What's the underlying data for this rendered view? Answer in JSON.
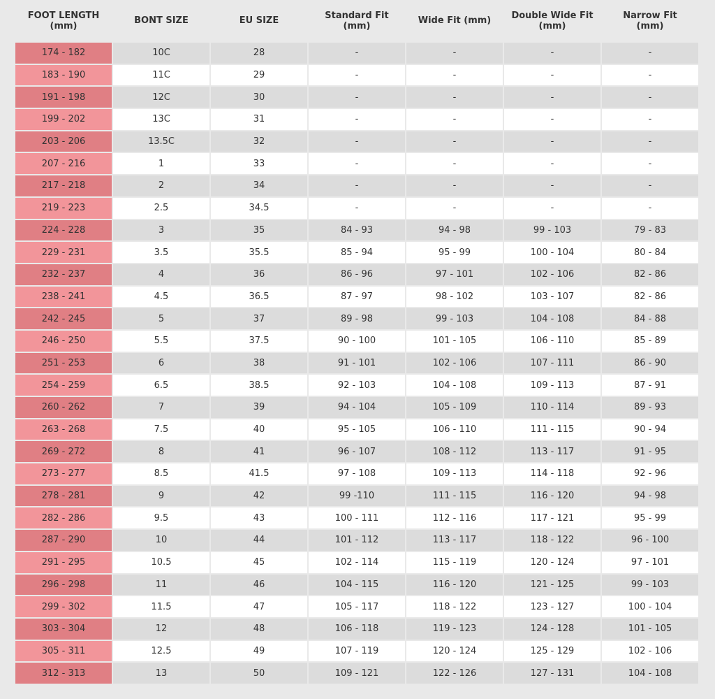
{
  "table": {
    "headers": [
      "FOOT LENGTH (mm)",
      "BONT SIZE",
      "EU SIZE",
      "Standard Fit (mm)",
      "Wide Fit (mm)",
      "Double Wide Fit (mm)",
      "Narrow Fit (mm)"
    ],
    "rows": [
      [
        "174 - 182",
        "10C",
        "28",
        "-",
        "-",
        "-",
        "-"
      ],
      [
        "183 - 190",
        "11C",
        "29",
        "-",
        "-",
        "-",
        "-"
      ],
      [
        "191 - 198",
        "12C",
        "30",
        "-",
        "-",
        "-",
        "-"
      ],
      [
        "199 - 202",
        "13C",
        "31",
        "-",
        "-",
        "-",
        "-"
      ],
      [
        "203 - 206",
        "13.5C",
        "32",
        "-",
        "-",
        "-",
        "-"
      ],
      [
        "207 - 216",
        "1",
        "33",
        "-",
        "-",
        "-",
        "-"
      ],
      [
        "217 - 218",
        "2",
        "34",
        "-",
        "-",
        "-",
        "-"
      ],
      [
        "219 - 223",
        "2.5",
        "34.5",
        "-",
        "-",
        "-",
        "-"
      ],
      [
        "224 - 228",
        "3",
        "35",
        "84 - 93",
        "94 - 98",
        "99 - 103",
        "79 - 83"
      ],
      [
        "229 - 231",
        "3.5",
        "35.5",
        "85 - 94",
        "95 - 99",
        "100 - 104",
        "80 - 84"
      ],
      [
        "232 - 237",
        "4",
        "36",
        "86 - 96",
        "97 - 101",
        "102 - 106",
        "82 - 86"
      ],
      [
        "238 - 241",
        "4.5",
        "36.5",
        "87 - 97",
        "98 - 102",
        "103 - 107",
        "82 - 86"
      ],
      [
        "242 - 245",
        "5",
        "37",
        "89 - 98",
        "99 - 103",
        "104 - 108",
        "84 - 88"
      ],
      [
        "246 - 250",
        "5.5",
        "37.5",
        "90 - 100",
        "101 - 105",
        "106 - 110",
        "85 - 89"
      ],
      [
        "251 - 253",
        "6",
        "38",
        "91 - 101",
        "102 - 106",
        "107 - 111",
        "86 - 90"
      ],
      [
        "254 - 259",
        "6.5",
        "38.5",
        "92 - 103",
        "104 - 108",
        "109 - 113",
        "87 - 91"
      ],
      [
        "260 - 262",
        "7",
        "39",
        "94 - 104",
        "105 - 109",
        "110 - 114",
        "89 - 93"
      ],
      [
        "263 - 268",
        "7.5",
        "40",
        "95 - 105",
        "106 - 110",
        "111 - 115",
        "90 - 94"
      ],
      [
        "269 - 272",
        "8",
        "41",
        "96 - 107",
        "108 - 112",
        "113 - 117",
        "91 - 95"
      ],
      [
        "273 - 277",
        "8.5",
        "41.5",
        "97 - 108",
        "109 - 113",
        "114 - 118",
        "92 - 96"
      ],
      [
        "278 - 281",
        "9",
        "42",
        "99 -110",
        "111 - 115",
        "116 - 120",
        "94 - 98"
      ],
      [
        "282 - 286",
        "9.5",
        "43",
        "100 - 111",
        "112 - 116",
        "117 - 121",
        "95 - 99"
      ],
      [
        "287 - 290",
        "10",
        "44",
        "101 - 112",
        "113 - 117",
        "118 - 122",
        "96 - 100"
      ],
      [
        "291 - 295",
        "10.5",
        "45",
        "102 - 114",
        "115 - 119",
        "120 - 124",
        "97 - 101"
      ],
      [
        "296 - 298",
        "11",
        "46",
        "104 - 115",
        "116 - 120",
        "121 - 125",
        "99 - 103"
      ],
      [
        "299 - 302",
        "11.5",
        "47",
        "105 - 117",
        "118 - 122",
        "123 - 127",
        "100 - 104"
      ],
      [
        "303 - 304",
        "12",
        "48",
        "106 - 118",
        "119 - 123",
        "124 - 128",
        "101 - 105"
      ],
      [
        "305 - 311",
        "12.5",
        "49",
        "107 - 119",
        "120 - 124",
        "125 - 129",
        "102 - 106"
      ],
      [
        "312 - 313",
        "13",
        "50",
        "109 - 121",
        "122 - 126",
        "127 - 131",
        "104 - 108"
      ]
    ]
  }
}
